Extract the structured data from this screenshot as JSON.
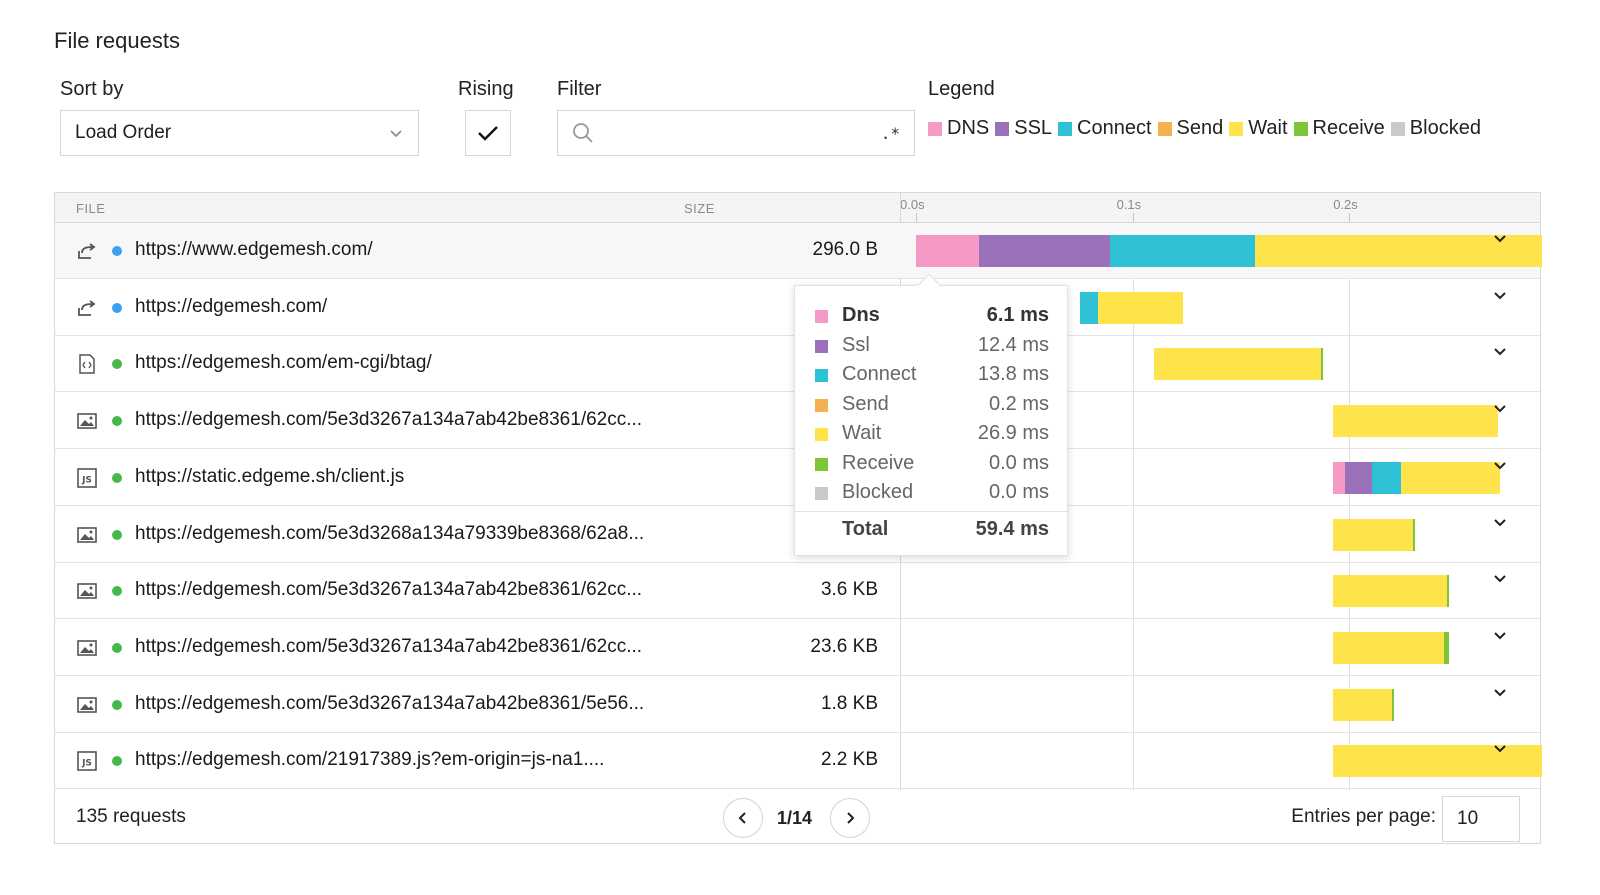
{
  "title": "File requests",
  "controls": {
    "sort_label": "Sort by",
    "sort_value": "Load Order",
    "rising_label": "Rising",
    "rising_checked": true,
    "filter_label": "Filter",
    "filter_value": "",
    "filter_regex_symbol": ".*",
    "legend_label": "Legend"
  },
  "legend": [
    {
      "name": "DNS",
      "color": "#f59ac7"
    },
    {
      "name": "SSL",
      "color": "#9b72b9"
    },
    {
      "name": "Connect",
      "color": "#2ec1d6"
    },
    {
      "name": "Send",
      "color": "#f5b14f"
    },
    {
      "name": "Wait",
      "color": "#fee34a"
    },
    {
      "name": "Receive",
      "color": "#7cc536"
    },
    {
      "name": "Blocked",
      "color": "#c9c9c9"
    }
  ],
  "table": {
    "headers": {
      "file": "FILE",
      "size": "SIZE"
    },
    "timeline_ticks": [
      {
        "label": "0.0s",
        "seconds": 0.0
      },
      {
        "label": "0.1s",
        "seconds": 0.1
      },
      {
        "label": "0.2s",
        "seconds": 0.2
      }
    ],
    "timeline_max_seconds": 0.289,
    "rows": [
      {
        "icon": "redirect-icon",
        "status": "#3aa0f0",
        "url": "https://www.edgemesh.com/",
        "size": "296.0 B",
        "timing": [
          {
            "type": "DNS",
            "start": 0.0,
            "dur": 0.0293
          },
          {
            "type": "SSL",
            "start": 0.0293,
            "dur": 0.0601
          },
          {
            "type": "Connect",
            "start": 0.0894,
            "dur": 0.0672
          },
          {
            "type": "Wait",
            "start": 0.1566,
            "dur": 0.1324
          }
        ]
      },
      {
        "icon": "redirect-icon",
        "status": "#3aa0f0",
        "url": "https://edgemesh.com/",
        "size": "",
        "timing": [
          {
            "type": "Connect",
            "start": 0.0758,
            "dur": 0.0081
          },
          {
            "type": "Wait",
            "start": 0.0839,
            "dur": 0.0393
          }
        ]
      },
      {
        "icon": "code-file-icon",
        "status": "#46b84a",
        "url": "https://edgemesh.com/em-cgi/btag/",
        "size": "",
        "timing": [
          {
            "type": "Wait",
            "start": 0.1099,
            "dur": 0.077
          },
          {
            "type": "Receive",
            "start": 0.1869,
            "dur": 0.001
          }
        ]
      },
      {
        "icon": "image-file-icon",
        "status": "#46b84a",
        "url": "https://edgemesh.com/5e3d3267a134a7ab42be8361/62cc...",
        "size": "",
        "timing": [
          {
            "type": "Wait",
            "start": 0.1925,
            "dur": 0.0764
          }
        ]
      },
      {
        "icon": "js-file-icon",
        "status": "#46b84a",
        "url": "https://static.edgeme.sh/client.js",
        "size": "",
        "timing": [
          {
            "type": "DNS",
            "start": 0.1925,
            "dur": 0.0056
          },
          {
            "type": "SSL",
            "start": 0.1981,
            "dur": 0.0125
          },
          {
            "type": "Connect",
            "start": 0.2106,
            "dur": 0.0134
          },
          {
            "type": "Wait",
            "start": 0.224,
            "dur": 0.0455
          }
        ]
      },
      {
        "icon": "image-file-icon",
        "status": "#46b84a",
        "url": "https://edgemesh.com/5e3d3268a134a79339be8368/62a8...",
        "size": "",
        "timing": [
          {
            "type": "Wait",
            "start": 0.1925,
            "dur": 0.0369
          },
          {
            "type": "Receive",
            "start": 0.2294,
            "dur": 0.0005
          }
        ]
      },
      {
        "icon": "image-file-icon",
        "status": "#46b84a",
        "url": "https://edgemesh.com/5e3d3267a134a7ab42be8361/62cc...",
        "size": "3.6 KB",
        "timing": [
          {
            "type": "Wait",
            "start": 0.1925,
            "dur": 0.0528
          },
          {
            "type": "Receive",
            "start": 0.2453,
            "dur": 0.0005
          }
        ]
      },
      {
        "icon": "image-file-icon",
        "status": "#46b84a",
        "url": "https://edgemesh.com/5e3d3267a134a7ab42be8361/62cc...",
        "size": "23.6 KB",
        "timing": [
          {
            "type": "Wait",
            "start": 0.1925,
            "dur": 0.0511
          },
          {
            "type": "Receive",
            "start": 0.2436,
            "dur": 0.0023
          }
        ]
      },
      {
        "icon": "image-file-icon",
        "status": "#46b84a",
        "url": "https://edgemesh.com/5e3d3267a134a7ab42be8361/5e56...",
        "size": "1.8 KB",
        "timing": [
          {
            "type": "Wait",
            "start": 0.1925,
            "dur": 0.0274
          },
          {
            "type": "Receive",
            "start": 0.2199,
            "dur": 0.0005
          }
        ]
      },
      {
        "icon": "js-file-icon",
        "status": "#46b84a",
        "url": "https://edgemesh.com/21917389.js?em-origin=js-na1....",
        "size": "2.2 KB",
        "timing": [
          {
            "type": "Wait",
            "start": 0.1925,
            "dur": 0.0965
          }
        ]
      }
    ]
  },
  "tooltip": {
    "rows": [
      {
        "name": "Dns",
        "value": "6.1 ms",
        "color": "#f59ac7",
        "bold": true
      },
      {
        "name": "Ssl",
        "value": "12.4 ms",
        "color": "#9b72b9",
        "bold": false
      },
      {
        "name": "Connect",
        "value": "13.8 ms",
        "color": "#2ec1d6",
        "bold": false
      },
      {
        "name": "Send",
        "value": "0.2 ms",
        "color": "#f5b14f",
        "bold": false
      },
      {
        "name": "Wait",
        "value": "26.9 ms",
        "color": "#fee34a",
        "bold": false
      },
      {
        "name": "Receive",
        "value": "0.0 ms",
        "color": "#7cc536",
        "bold": false
      },
      {
        "name": "Blocked",
        "value": "0.0 ms",
        "color": "#c9c9c9",
        "bold": false
      }
    ],
    "total_label": "Total",
    "total_value": "59.4 ms"
  },
  "footer": {
    "count": "135 requests",
    "page": "1/14",
    "entries_label": "Entries per page:",
    "entries_value": "10"
  }
}
